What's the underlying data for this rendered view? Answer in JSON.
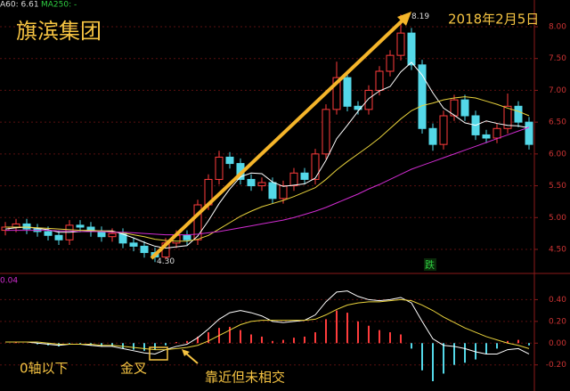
{
  "title": "旗滨集团",
  "date": "2018年2月5日",
  "legend_text": [
    "A60: 6.61",
    "MA250: -"
  ],
  "notes": [
    "0轴以下",
    "金叉",
    "靠近但未相交"
  ],
  "signal": "跌",
  "chart_data": [
    {
      "type": "candlestick",
      "open": [
        4.8,
        4.85,
        4.9,
        4.82,
        4.78,
        4.72,
        4.65,
        4.88,
        4.85,
        4.78,
        4.7,
        4.75,
        4.6,
        4.55,
        4.45,
        4.38,
        4.6,
        4.72,
        4.65,
        5.2,
        5.6,
        5.95,
        5.85,
        5.6,
        5.5,
        5.55,
        5.3,
        5.5,
        5.7,
        5.6,
        6.0,
        6.7,
        7.2,
        6.75,
        6.7,
        7.0,
        7.3,
        7.55,
        7.9,
        7.4,
        6.4,
        6.15,
        6.6,
        6.85,
        6.6,
        6.3,
        6.25,
        6.4,
        6.75,
        6.5
      ],
      "close": [
        4.85,
        4.9,
        4.82,
        4.78,
        4.72,
        4.65,
        4.88,
        4.85,
        4.78,
        4.7,
        4.75,
        4.6,
        4.55,
        4.45,
        4.38,
        4.6,
        4.72,
        4.65,
        5.2,
        5.6,
        5.95,
        5.85,
        5.6,
        5.5,
        5.55,
        5.3,
        5.5,
        5.7,
        5.6,
        6.0,
        6.7,
        7.2,
        6.75,
        6.7,
        7.0,
        7.3,
        7.55,
        7.9,
        7.4,
        6.4,
        6.15,
        6.6,
        6.85,
        6.6,
        6.3,
        6.25,
        6.4,
        6.75,
        6.5,
        6.15
      ],
      "high": [
        4.93,
        4.98,
        4.98,
        4.9,
        4.86,
        4.8,
        4.96,
        4.96,
        4.93,
        4.86,
        4.83,
        4.83,
        4.68,
        4.63,
        4.53,
        4.68,
        4.8,
        4.8,
        5.28,
        5.68,
        6.05,
        6.03,
        5.93,
        5.68,
        5.63,
        5.63,
        5.58,
        5.78,
        5.78,
        6.08,
        6.78,
        7.45,
        7.28,
        6.83,
        7.08,
        7.38,
        7.63,
        8.19,
        7.98,
        7.48,
        6.48,
        6.68,
        6.93,
        6.93,
        6.68,
        6.38,
        6.48,
        6.95,
        6.83,
        6.58
      ],
      "low": [
        4.72,
        4.77,
        4.74,
        4.7,
        4.64,
        4.57,
        4.57,
        4.77,
        4.7,
        4.62,
        4.62,
        4.52,
        4.47,
        4.37,
        4.3,
        4.34,
        4.52,
        4.57,
        4.57,
        5.12,
        5.52,
        5.77,
        5.52,
        5.42,
        5.42,
        5.22,
        5.22,
        5.42,
        5.52,
        5.52,
        5.92,
        6.62,
        6.67,
        6.62,
        6.62,
        6.92,
        7.22,
        7.47,
        7.32,
        6.32,
        6.05,
        6.07,
        6.52,
        6.52,
        6.22,
        6.17,
        6.17,
        6.32,
        6.42,
        6.07
      ],
      "lines": [
        {
          "color": "#ffffff",
          "values": [
            4.82,
            4.84,
            4.85,
            4.83,
            4.81,
            4.77,
            4.77,
            4.78,
            4.79,
            4.79,
            4.79,
            4.74,
            4.68,
            4.61,
            4.55,
            4.52,
            4.54,
            4.56,
            4.71,
            4.95,
            5.22,
            5.45,
            5.64,
            5.7,
            5.69,
            5.56,
            5.49,
            5.51,
            5.53,
            5.62,
            5.9,
            6.24,
            6.45,
            6.67,
            6.87,
            6.99,
            7.06,
            7.29,
            7.44,
            7.24,
            6.96,
            6.72,
            6.61,
            6.49,
            6.45,
            6.52,
            6.48,
            6.45,
            6.44,
            6.41
          ]
        },
        {
          "color": "#e8d23c",
          "values": [
            4.85,
            4.85,
            4.85,
            4.84,
            4.83,
            4.82,
            4.81,
            4.8,
            4.8,
            4.79,
            4.78,
            4.76,
            4.73,
            4.7,
            4.66,
            4.64,
            4.63,
            4.63,
            4.66,
            4.72,
            4.82,
            4.92,
            5.02,
            5.1,
            5.17,
            5.22,
            5.27,
            5.33,
            5.4,
            5.47,
            5.6,
            5.75,
            5.88,
            6.0,
            6.12,
            6.25,
            6.4,
            6.55,
            6.68,
            6.76,
            6.8,
            6.85,
            6.88,
            6.9,
            6.88,
            6.83,
            6.78,
            6.72,
            6.67,
            6.6
          ]
        },
        {
          "color": "#d02cd0",
          "values": [
            4.8,
            4.8,
            4.8,
            4.8,
            4.8,
            4.79,
            4.79,
            4.78,
            4.78,
            4.78,
            4.77,
            4.77,
            4.76,
            4.75,
            4.74,
            4.73,
            4.73,
            4.73,
            4.74,
            4.76,
            4.78,
            4.81,
            4.84,
            4.87,
            4.9,
            4.93,
            4.96,
            5.0,
            5.05,
            5.1,
            5.16,
            5.23,
            5.3,
            5.37,
            5.45,
            5.52,
            5.6,
            5.68,
            5.76,
            5.82,
            5.88,
            5.94,
            6.0,
            6.06,
            6.12,
            6.18,
            6.24,
            6.3,
            6.36,
            6.42
          ]
        }
      ],
      "up_color": "#ff3c3c",
      "down_color": "#54d8e8",
      "annotations": {
        "peak": 8.19,
        "trough": {
          "value": 4.3,
          "label": "4.30"
        }
      },
      "ylim": [
        4.15,
        8.42
      ],
      "yticks": [
        {
          "value": 4.5,
          "label": "4.50"
        },
        {
          "value": 5,
          "label": "5.00"
        },
        {
          "value": 5.5,
          "label": "5.50"
        },
        {
          "value": 6,
          "label": "6.00"
        },
        {
          "value": 6.5,
          "label": "6.50"
        },
        {
          "value": 7,
          "label": "7.00"
        },
        {
          "value": 7.5,
          "label": "7.50"
        },
        {
          "value": 8,
          "label": "8.00"
        }
      ],
      "grid": true
    },
    {
      "type": "bar",
      "label": "0.04",
      "values": [
        0,
        0.01,
        0,
        -0.01,
        -0.02,
        -0.03,
        -0.01,
        -0.01,
        -0.02,
        -0.03,
        -0.03,
        -0.05,
        -0.06,
        -0.07,
        -0.06,
        -0.02,
        0.01,
        0.02,
        0.06,
        0.1,
        0.14,
        0.15,
        0.12,
        0.08,
        0.06,
        0.02,
        0.03,
        0.05,
        0.06,
        0.1,
        0.22,
        0.3,
        0.28,
        0.2,
        0.16,
        0.12,
        0.1,
        0.08,
        -0.05,
        -0.25,
        -0.35,
        -0.28,
        -0.2,
        -0.18,
        -0.15,
        -0.1,
        -0.05,
        0.02,
        0.03,
        -0.02
      ],
      "up_color": "#ff3c3c",
      "down_color": "#54d8e8",
      "lines": [
        {
          "color": "#ffffff",
          "values": [
            0.01,
            0.01,
            0.01,
            0,
            -0.01,
            -0.02,
            -0.01,
            -0.01,
            -0.02,
            -0.03,
            -0.03,
            -0.05,
            -0.07,
            -0.09,
            -0.1,
            -0.06,
            -0.03,
            -0.01,
            0.05,
            0.13,
            0.22,
            0.28,
            0.3,
            0.28,
            0.25,
            0.2,
            0.19,
            0.2,
            0.21,
            0.26,
            0.38,
            0.47,
            0.48,
            0.43,
            0.4,
            0.39,
            0.4,
            0.42,
            0.37,
            0.2,
            0.04,
            -0.02,
            -0.03,
            -0.05,
            -0.08,
            -0.1,
            -0.1,
            -0.06,
            -0.05,
            -0.1
          ]
        },
        {
          "color": "#e8d23c",
          "values": [
            0.01,
            0.01,
            0.01,
            0.01,
            0,
            -0.01,
            -0.01,
            -0.01,
            -0.01,
            -0.02,
            -0.02,
            -0.03,
            -0.04,
            -0.05,
            -0.06,
            -0.06,
            -0.05,
            -0.04,
            -0.02,
            0.02,
            0.07,
            0.12,
            0.17,
            0.2,
            0.21,
            0.21,
            0.21,
            0.21,
            0.21,
            0.22,
            0.26,
            0.31,
            0.35,
            0.37,
            0.38,
            0.38,
            0.39,
            0.4,
            0.39,
            0.35,
            0.3,
            0.24,
            0.19,
            0.14,
            0.1,
            0.06,
            0.03,
            0,
            -0.02,
            -0.05
          ]
        }
      ],
      "ylim": [
        -0.44,
        0.6
      ],
      "yticks": [
        {
          "value": -0.2,
          "label": "-0.20"
        },
        {
          "value": 0,
          "label": "0.00"
        },
        {
          "value": 0.2,
          "label": "0.20"
        },
        {
          "value": 0.4,
          "label": "0.40"
        }
      ],
      "grid": true
    }
  ]
}
